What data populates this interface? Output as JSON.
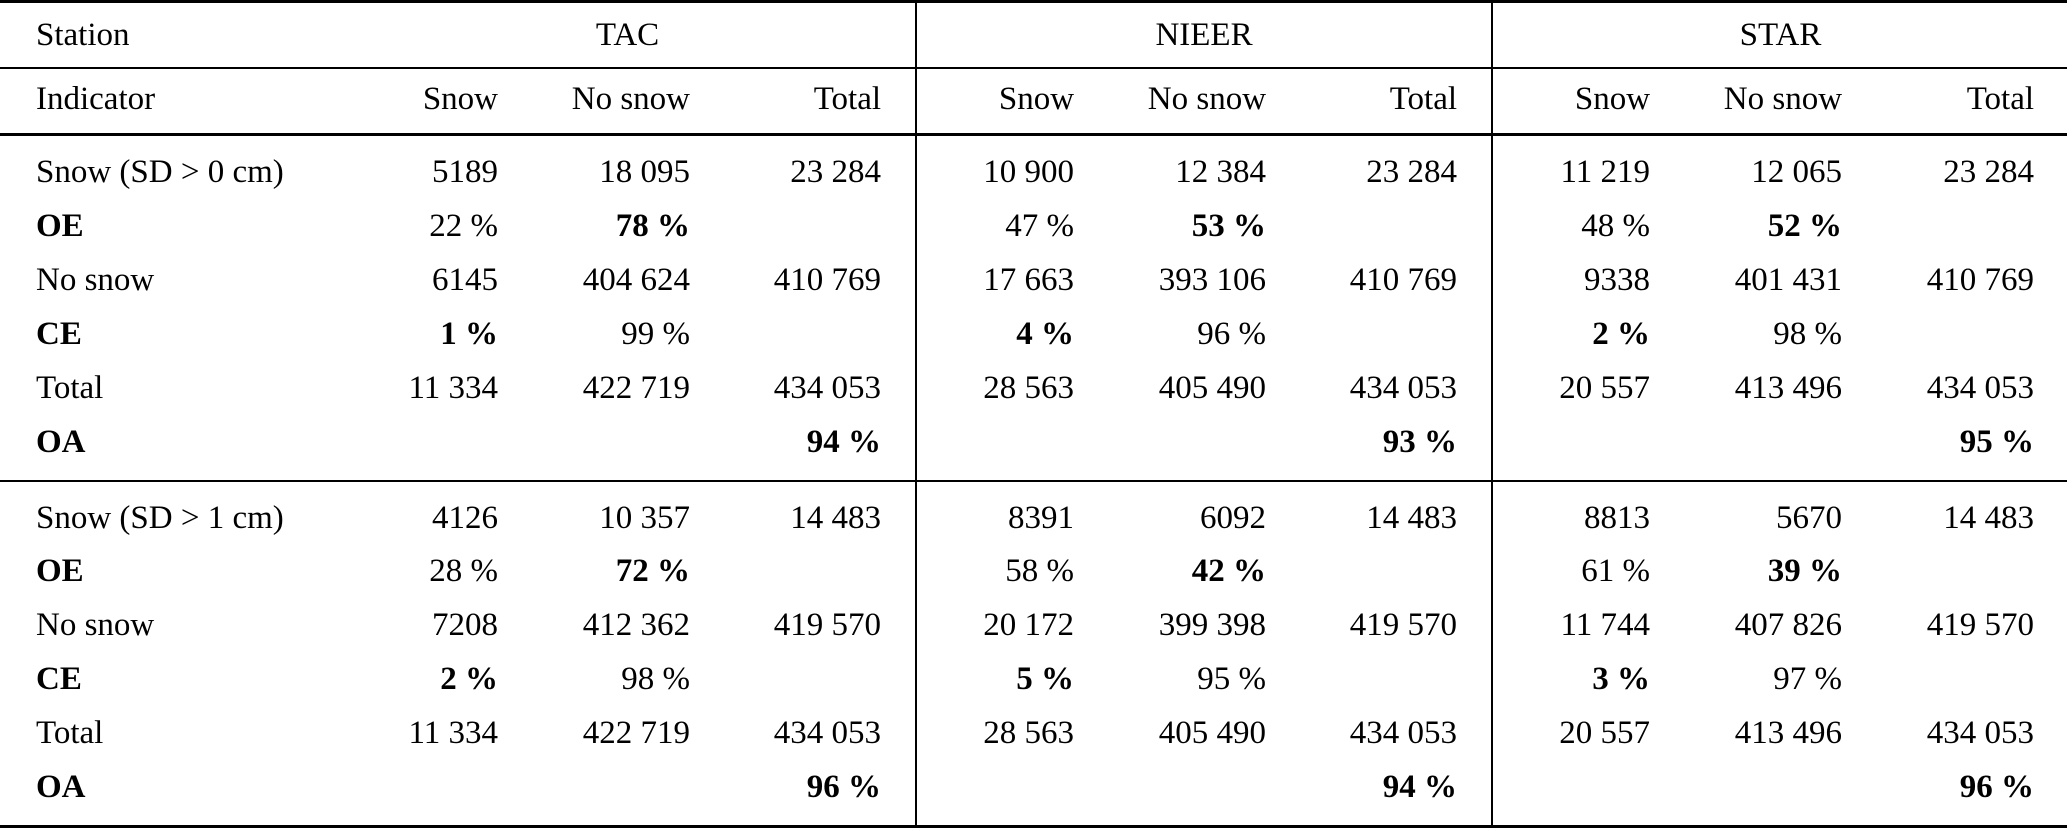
{
  "table": {
    "corner": {
      "station": "Station",
      "indicator": "Indicator"
    },
    "station_groups": [
      "TAC",
      "NIEER",
      "STAR"
    ],
    "sub_headers": [
      "Snow",
      "No snow",
      "Total"
    ],
    "sections": [
      {
        "rows": [
          {
            "label": "Snow (SD > 0 cm)",
            "bold_label": false,
            "cells": [
              {
                "text": "5189"
              },
              {
                "text": "18 095"
              },
              {
                "text": "23 284"
              },
              {
                "text": "10 900"
              },
              {
                "text": "12 384"
              },
              {
                "text": "23 284"
              },
              {
                "text": "11 219"
              },
              {
                "text": "12 065"
              },
              {
                "text": "23 284"
              }
            ]
          },
          {
            "label": "OE",
            "bold_label": true,
            "cells": [
              {
                "text": "22 %"
              },
              {
                "text": "78 %",
                "bold": true
              },
              {
                "text": ""
              },
              {
                "text": "47 %"
              },
              {
                "text": "53 %",
                "bold": true
              },
              {
                "text": ""
              },
              {
                "text": "48 %"
              },
              {
                "text": "52 %",
                "bold": true
              },
              {
                "text": ""
              }
            ]
          },
          {
            "label": "No snow",
            "bold_label": false,
            "cells": [
              {
                "text": "6145"
              },
              {
                "text": "404 624"
              },
              {
                "text": "410 769"
              },
              {
                "text": "17 663"
              },
              {
                "text": "393 106"
              },
              {
                "text": "410 769"
              },
              {
                "text": "9338"
              },
              {
                "text": "401 431"
              },
              {
                "text": "410 769"
              }
            ]
          },
          {
            "label": "CE",
            "bold_label": true,
            "cells": [
              {
                "text": "1 %",
                "bold": true
              },
              {
                "text": "99 %"
              },
              {
                "text": ""
              },
              {
                "text": "4 %",
                "bold": true
              },
              {
                "text": "96 %"
              },
              {
                "text": ""
              },
              {
                "text": "2 %",
                "bold": true
              },
              {
                "text": "98 %"
              },
              {
                "text": ""
              }
            ]
          },
          {
            "label": "Total",
            "bold_label": false,
            "cells": [
              {
                "text": "11 334"
              },
              {
                "text": "422 719"
              },
              {
                "text": "434 053"
              },
              {
                "text": "28 563"
              },
              {
                "text": "405 490"
              },
              {
                "text": "434 053"
              },
              {
                "text": "20 557"
              },
              {
                "text": "413 496"
              },
              {
                "text": "434 053"
              }
            ]
          },
          {
            "label": "OA",
            "bold_label": true,
            "cells": [
              {
                "text": ""
              },
              {
                "text": ""
              },
              {
                "text": "94 %",
                "bold": true
              },
              {
                "text": ""
              },
              {
                "text": ""
              },
              {
                "text": "93 %",
                "bold": true
              },
              {
                "text": ""
              },
              {
                "text": ""
              },
              {
                "text": "95 %",
                "bold": true
              }
            ]
          }
        ]
      },
      {
        "rows": [
          {
            "label": "Snow (SD > 1 cm)",
            "bold_label": false,
            "cells": [
              {
                "text": "4126"
              },
              {
                "text": "10 357"
              },
              {
                "text": "14 483"
              },
              {
                "text": "8391"
              },
              {
                "text": "6092"
              },
              {
                "text": "14 483"
              },
              {
                "text": "8813"
              },
              {
                "text": "5670"
              },
              {
                "text": "14 483"
              }
            ]
          },
          {
            "label": "OE",
            "bold_label": true,
            "cells": [
              {
                "text": "28 %"
              },
              {
                "text": "72 %",
                "bold": true
              },
              {
                "text": ""
              },
              {
                "text": "58 %"
              },
              {
                "text": "42 %",
                "bold": true
              },
              {
                "text": ""
              },
              {
                "text": "61 %"
              },
              {
                "text": "39 %",
                "bold": true
              },
              {
                "text": ""
              }
            ]
          },
          {
            "label": "No snow",
            "bold_label": false,
            "cells": [
              {
                "text": "7208"
              },
              {
                "text": "412 362"
              },
              {
                "text": "419 570"
              },
              {
                "text": "20 172"
              },
              {
                "text": "399 398"
              },
              {
                "text": "419 570"
              },
              {
                "text": "11 744"
              },
              {
                "text": "407 826"
              },
              {
                "text": "419 570"
              }
            ]
          },
          {
            "label": "CE",
            "bold_label": true,
            "cells": [
              {
                "text": "2 %",
                "bold": true
              },
              {
                "text": "98 %"
              },
              {
                "text": ""
              },
              {
                "text": "5 %",
                "bold": true
              },
              {
                "text": "95 %"
              },
              {
                "text": ""
              },
              {
                "text": "3 %",
                "bold": true
              },
              {
                "text": "97 %"
              },
              {
                "text": ""
              }
            ]
          },
          {
            "label": "Total",
            "bold_label": false,
            "cells": [
              {
                "text": "11 334"
              },
              {
                "text": "422 719"
              },
              {
                "text": "434 053"
              },
              {
                "text": "28 563"
              },
              {
                "text": "405 490"
              },
              {
                "text": "434 053"
              },
              {
                "text": "20 557"
              },
              {
                "text": "413 496"
              },
              {
                "text": "434 053"
              }
            ]
          },
          {
            "label": "OA",
            "bold_label": true,
            "cells": [
              {
                "text": ""
              },
              {
                "text": ""
              },
              {
                "text": "96 %",
                "bold": true
              },
              {
                "text": ""
              },
              {
                "text": ""
              },
              {
                "text": "94 %",
                "bold": true
              },
              {
                "text": ""
              },
              {
                "text": ""
              },
              {
                "text": "96 %",
                "bold": true
              }
            ]
          }
        ]
      }
    ]
  }
}
